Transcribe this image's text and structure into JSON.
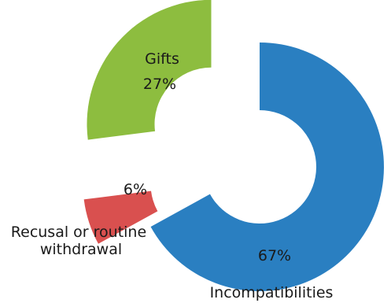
{
  "chart_data": {
    "type": "pie",
    "style": "exploded-donut",
    "title": "",
    "legend": "none",
    "slices": [
      {
        "category": "Incompatibilities",
        "value": 67,
        "value_label": "67%",
        "color": "#2a7fc1"
      },
      {
        "category": "Recusal or routine withdrawal",
        "value": 6,
        "value_label": "6%",
        "color": "#d9504f"
      },
      {
        "category": "Gifts",
        "value": 27,
        "value_label": "27%",
        "color": "#8dbd3f"
      }
    ]
  }
}
